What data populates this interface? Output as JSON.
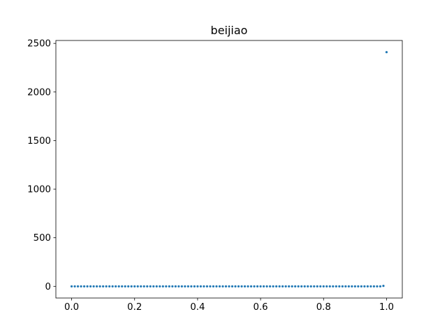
{
  "chart_data": {
    "type": "scatter",
    "title": "beijiao",
    "xlabel": "",
    "ylabel": "",
    "xlim": [
      -0.05,
      1.05
    ],
    "ylim": [
      -120,
      2530
    ],
    "x_ticks": [
      0.0,
      0.2,
      0.4,
      0.6,
      0.8,
      1.0
    ],
    "x_tick_labels": [
      "0.0",
      "0.2",
      "0.4",
      "0.6",
      "0.8",
      "1.0"
    ],
    "y_ticks": [
      0,
      500,
      1000,
      1500,
      2000,
      2500
    ],
    "y_tick_labels": [
      "0",
      "500",
      "1000",
      "1500",
      "2000",
      "2500"
    ],
    "grid": false,
    "series": [
      {
        "color": "#1f77b4",
        "x": [
          0.0,
          0.01,
          0.02,
          0.03,
          0.04,
          0.05,
          0.06,
          0.07,
          0.08,
          0.09,
          0.1,
          0.11,
          0.12,
          0.13,
          0.14,
          0.15,
          0.16,
          0.17,
          0.18,
          0.19,
          0.2,
          0.21,
          0.22,
          0.23,
          0.24,
          0.25,
          0.26,
          0.27,
          0.28,
          0.29,
          0.3,
          0.31,
          0.32,
          0.33,
          0.34,
          0.35,
          0.36,
          0.37,
          0.38,
          0.39,
          0.4,
          0.41,
          0.42,
          0.43,
          0.44,
          0.45,
          0.46,
          0.47,
          0.48,
          0.49,
          0.5,
          0.51,
          0.52,
          0.53,
          0.54,
          0.55,
          0.56,
          0.57,
          0.58,
          0.59,
          0.6,
          0.61,
          0.62,
          0.63,
          0.64,
          0.65,
          0.66,
          0.67,
          0.68,
          0.69,
          0.7,
          0.71,
          0.72,
          0.73,
          0.74,
          0.75,
          0.76,
          0.77,
          0.78,
          0.79,
          0.8,
          0.81,
          0.82,
          0.83,
          0.84,
          0.85,
          0.86,
          0.87,
          0.88,
          0.89,
          0.9,
          0.91,
          0.92,
          0.93,
          0.94,
          0.95,
          0.96,
          0.97,
          0.98,
          0.99,
          1.0
        ],
        "y": [
          0,
          0,
          0,
          0,
          0,
          0,
          0,
          0,
          0,
          0,
          0,
          0,
          0,
          0,
          0,
          0,
          0,
          0,
          0,
          0,
          0,
          0,
          0,
          0,
          0,
          0,
          0,
          0,
          0,
          0,
          0,
          0,
          0,
          0,
          0,
          0,
          0,
          0,
          0,
          0,
          0,
          0,
          0,
          0,
          0,
          0,
          0,
          0,
          0,
          0,
          0,
          0,
          0,
          0,
          0,
          0,
          0,
          0,
          0,
          0,
          0,
          0,
          0,
          0,
          0,
          0,
          0,
          0,
          0,
          0,
          0,
          0,
          0,
          0,
          0,
          0,
          0,
          0,
          0,
          0,
          0,
          0,
          0,
          0,
          0,
          0,
          0,
          0,
          0,
          0,
          0,
          0,
          0,
          0,
          0,
          0,
          0,
          0,
          0,
          5,
          2410
        ]
      }
    ]
  }
}
